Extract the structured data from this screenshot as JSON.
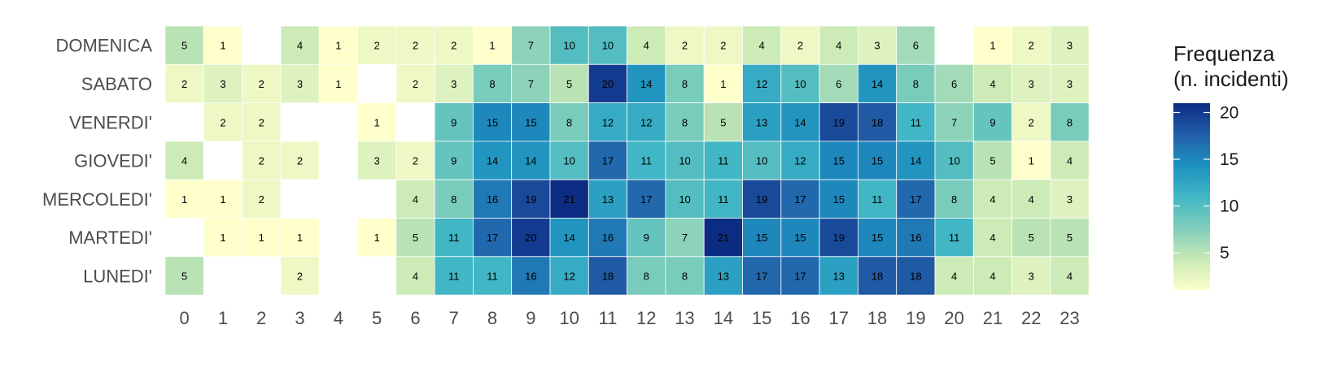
{
  "chart_data": {
    "type": "heatmap",
    "x": [
      "0",
      "1",
      "2",
      "3",
      "4",
      "5",
      "6",
      "7",
      "8",
      "9",
      "10",
      "11",
      "12",
      "13",
      "14",
      "15",
      "16",
      "17",
      "18",
      "19",
      "20",
      "21",
      "22",
      "23"
    ],
    "y": [
      "DOMENICA",
      "SABATO",
      "VENERDI'",
      "GIOVEDI'",
      "MERCOLEDI'",
      "MARTEDI'",
      "LUNEDI'"
    ],
    "values": [
      [
        5,
        1,
        null,
        4,
        1,
        2,
        2,
        2,
        1,
        7,
        10,
        10,
        4,
        2,
        2,
        4,
        2,
        4,
        3,
        6,
        null,
        1,
        2,
        3
      ],
      [
        2,
        3,
        2,
        3,
        1,
        null,
        2,
        3,
        8,
        7,
        5,
        20,
        14,
        8,
        1,
        12,
        10,
        6,
        14,
        8,
        6,
        4,
        3,
        3
      ],
      [
        null,
        2,
        2,
        null,
        null,
        1,
        null,
        9,
        15,
        15,
        8,
        12,
        12,
        8,
        5,
        13,
        14,
        19,
        18,
        11,
        7,
        9,
        2,
        8
      ],
      [
        4,
        null,
        2,
        2,
        null,
        3,
        2,
        9,
        14,
        14,
        10,
        17,
        11,
        10,
        11,
        10,
        12,
        15,
        15,
        14,
        10,
        5,
        1,
        4
      ],
      [
        1,
        1,
        2,
        null,
        null,
        null,
        4,
        8,
        16,
        19,
        21,
        13,
        17,
        10,
        11,
        19,
        17,
        15,
        11,
        17,
        8,
        4,
        4,
        3
      ],
      [
        null,
        1,
        1,
        1,
        null,
        1,
        5,
        11,
        17,
        20,
        14,
        16,
        9,
        7,
        21,
        15,
        15,
        19,
        15,
        16,
        11,
        4,
        5,
        5
      ],
      [
        5,
        null,
        null,
        2,
        null,
        null,
        4,
        11,
        11,
        16,
        12,
        18,
        8,
        8,
        13,
        17,
        17,
        13,
        18,
        18,
        4,
        4,
        3,
        4
      ]
    ],
    "legend": {
      "title_lines": [
        "Frequenza",
        "(n. incidenti)"
      ],
      "ticks": [
        "5",
        "10",
        "15",
        "20"
      ],
      "tick_values": [
        5,
        10,
        15,
        20
      ],
      "range": [
        1,
        21
      ],
      "placement": "right"
    },
    "colors": {
      "scale": [
        "#ffffcc",
        "#c7e9b4",
        "#7fcdbb",
        "#41b6c4",
        "#1d91c0",
        "#225ea8",
        "#0c2c84"
      ],
      "cell_border": "#ffffff",
      "text": "#000000"
    }
  }
}
